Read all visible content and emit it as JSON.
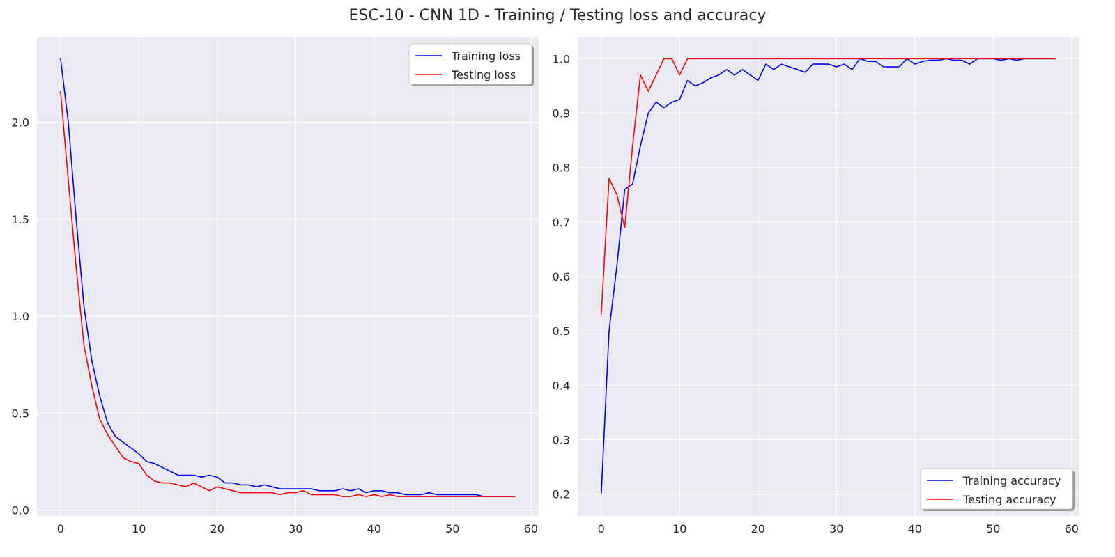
{
  "figure": {
    "title": "ESC-10 - CNN 1D - Training / Testing loss and accuracy"
  },
  "colors": {
    "training": "#0000ff",
    "testing": "#ff0000",
    "plot_bg": "#eaeaf2",
    "grid": "#ffffff"
  },
  "chart_data": [
    {
      "type": "line",
      "title": "",
      "xlabel": "",
      "ylabel": "",
      "xlim": [
        -3,
        61
      ],
      "ylim": [
        -0.03,
        2.44
      ],
      "xticks": [
        0,
        10,
        20,
        30,
        40,
        50,
        60
      ],
      "yticks": [
        0.0,
        0.5,
        1.0,
        1.5,
        2.0
      ],
      "ytick_labels": [
        "0.0",
        "0.5",
        "1.0",
        "1.5",
        "2.0"
      ],
      "legend": "upper right",
      "grid": true,
      "x": [
        0,
        1,
        2,
        3,
        4,
        5,
        6,
        7,
        8,
        9,
        10,
        11,
        12,
        13,
        14,
        15,
        16,
        17,
        18,
        19,
        20,
        21,
        22,
        23,
        24,
        25,
        26,
        27,
        28,
        29,
        30,
        31,
        32,
        33,
        34,
        35,
        36,
        37,
        38,
        39,
        40,
        41,
        42,
        43,
        44,
        45,
        46,
        47,
        48,
        49,
        50,
        51,
        52,
        53,
        54,
        55,
        56,
        57,
        58
      ],
      "series": [
        {
          "name": "Training loss",
          "color": "#0000ff",
          "values": [
            2.33,
            2.0,
            1.5,
            1.05,
            0.77,
            0.59,
            0.45,
            0.38,
            0.35,
            0.32,
            0.29,
            0.25,
            0.24,
            0.22,
            0.2,
            0.18,
            0.18,
            0.18,
            0.17,
            0.18,
            0.17,
            0.14,
            0.14,
            0.13,
            0.13,
            0.12,
            0.13,
            0.12,
            0.11,
            0.11,
            0.11,
            0.11,
            0.11,
            0.1,
            0.1,
            0.1,
            0.11,
            0.1,
            0.11,
            0.09,
            0.1,
            0.1,
            0.09,
            0.09,
            0.08,
            0.08,
            0.08,
            0.09,
            0.08,
            0.08,
            0.08,
            0.08,
            0.08,
            0.08,
            0.07,
            0.07,
            0.07,
            0.07,
            0.07
          ]
        },
        {
          "name": "Testing loss",
          "color": "#ff0000",
          "values": [
            2.16,
            1.7,
            1.25,
            0.85,
            0.64,
            0.47,
            0.39,
            0.33,
            0.27,
            0.25,
            0.24,
            0.18,
            0.15,
            0.14,
            0.14,
            0.13,
            0.12,
            0.14,
            0.12,
            0.1,
            0.12,
            0.11,
            0.1,
            0.09,
            0.09,
            0.09,
            0.09,
            0.09,
            0.08,
            0.09,
            0.09,
            0.1,
            0.08,
            0.08,
            0.08,
            0.08,
            0.07,
            0.07,
            0.08,
            0.07,
            0.08,
            0.07,
            0.08,
            0.07,
            0.07,
            0.07,
            0.07,
            0.07,
            0.07,
            0.07,
            0.07,
            0.07,
            0.07,
            0.07,
            0.07,
            0.07,
            0.07,
            0.07,
            0.07
          ]
        }
      ]
    },
    {
      "type": "line",
      "title": "",
      "xlabel": "",
      "ylabel": "",
      "xlim": [
        -3,
        61
      ],
      "ylim": [
        0.16,
        1.04
      ],
      "xticks": [
        0,
        10,
        20,
        30,
        40,
        50,
        60
      ],
      "yticks": [
        0.2,
        0.3,
        0.4,
        0.5,
        0.6,
        0.7,
        0.8,
        0.9,
        1.0
      ],
      "ytick_labels": [
        "0.2",
        "0.3",
        "0.4",
        "0.5",
        "0.6",
        "0.7",
        "0.8",
        "0.9",
        "1.0"
      ],
      "legend": "lower right",
      "grid": true,
      "x": [
        0,
        1,
        2,
        3,
        4,
        5,
        6,
        7,
        8,
        9,
        10,
        11,
        12,
        13,
        14,
        15,
        16,
        17,
        18,
        19,
        20,
        21,
        22,
        23,
        24,
        25,
        26,
        27,
        28,
        29,
        30,
        31,
        32,
        33,
        34,
        35,
        36,
        37,
        38,
        39,
        40,
        41,
        42,
        43,
        44,
        45,
        46,
        47,
        48,
        49,
        50,
        51,
        52,
        53,
        54,
        55,
        56,
        57,
        58
      ],
      "series": [
        {
          "name": "Training accuracy",
          "color": "#0000ff",
          "values": [
            0.2,
            0.5,
            0.62,
            0.76,
            0.77,
            0.84,
            0.9,
            0.92,
            0.91,
            0.92,
            0.925,
            0.96,
            0.95,
            0.956,
            0.965,
            0.97,
            0.98,
            0.97,
            0.98,
            0.97,
            0.96,
            0.99,
            0.98,
            0.99,
            0.985,
            0.98,
            0.975,
            0.99,
            0.99,
            0.99,
            0.985,
            0.99,
            0.98,
            1.0,
            0.995,
            0.995,
            0.985,
            0.985,
            0.985,
            1.0,
            0.99,
            0.995,
            0.997,
            0.997,
            1.0,
            0.997,
            0.997,
            0.99,
            1.0,
            1.0,
            1.0,
            0.997,
            1.0,
            0.997,
            1.0,
            1.0,
            1.0,
            1.0,
            1.0
          ]
        },
        {
          "name": "Testing accuracy",
          "color": "#ff0000",
          "values": [
            0.53,
            0.78,
            0.75,
            0.69,
            0.84,
            0.97,
            0.94,
            0.97,
            1.0,
            1.0,
            0.97,
            1.0,
            1.0,
            1.0,
            1.0,
            1.0,
            1.0,
            1.0,
            1.0,
            1.0,
            1.0,
            1.0,
            1.0,
            1.0,
            1.0,
            1.0,
            1.0,
            1.0,
            1.0,
            1.0,
            1.0,
            1.0,
            1.0,
            1.0,
            1.0,
            1.0,
            1.0,
            1.0,
            1.0,
            1.0,
            1.0,
            1.0,
            1.0,
            1.0,
            1.0,
            1.0,
            1.0,
            1.0,
            1.0,
            1.0,
            1.0,
            1.0,
            1.0,
            1.0,
            1.0,
            1.0,
            1.0,
            1.0,
            1.0
          ]
        }
      ]
    }
  ]
}
